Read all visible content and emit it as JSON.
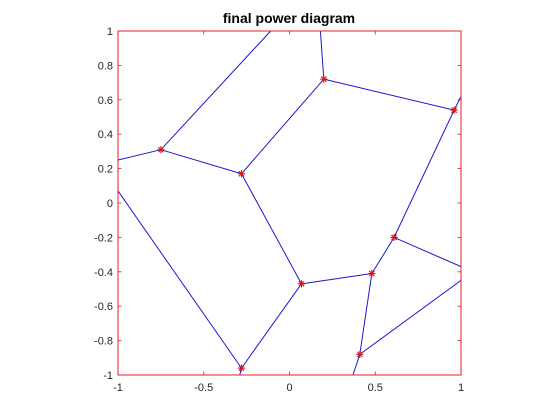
{
  "chart_data": {
    "type": "diagram",
    "title": "final power diagram",
    "xlabel": "",
    "ylabel": "",
    "xlim": [
      -1,
      1
    ],
    "ylim": [
      -1,
      1
    ],
    "xticks": [
      -1,
      -0.5,
      0,
      0.5,
      1
    ],
    "xtick_labels": [
      "-1",
      "-0.5",
      "0",
      "0.5",
      "1"
    ],
    "yticks": [
      1,
      0.8,
      0.6,
      0.4,
      0.2,
      0,
      -0.2,
      -0.4,
      -0.6,
      -0.8,
      -1
    ],
    "ytick_labels": [
      "1",
      "0.8",
      "0.6",
      "0.4",
      "0.2",
      "0",
      "-0.2",
      "-0.4",
      "-0.6",
      "-0.8",
      "-1"
    ],
    "grid": false,
    "frame_color": "#e0202a",
    "edge_color": "#1a1acc",
    "marker_color": "#dd1111",
    "marker_symbol": "asterisk",
    "vertices": [
      {
        "x": -0.75,
        "y": 0.31
      },
      {
        "x": -0.28,
        "y": 0.17
      },
      {
        "x": 0.2,
        "y": 0.72
      },
      {
        "x": 0.96,
        "y": 0.54
      },
      {
        "x": 0.61,
        "y": -0.2
      },
      {
        "x": 0.48,
        "y": -0.41
      },
      {
        "x": 0.07,
        "y": -0.47
      },
      {
        "x": -0.28,
        "y": -0.96
      },
      {
        "x": 0.41,
        "y": -0.88
      }
    ],
    "edges": [
      {
        "x1": -1.0,
        "y1": 0.25,
        "x2": -0.75,
        "y2": 0.31
      },
      {
        "x1": -0.75,
        "y1": 0.31,
        "x2": -0.28,
        "y2": 0.17
      },
      {
        "x1": -0.75,
        "y1": 0.31,
        "x2": -0.11,
        "y2": 1.0
      },
      {
        "x1": -0.28,
        "y1": 0.17,
        "x2": 0.2,
        "y2": 0.72
      },
      {
        "x1": 0.2,
        "y1": 0.72,
        "x2": 0.18,
        "y2": 1.0
      },
      {
        "x1": 0.2,
        "y1": 0.72,
        "x2": 0.96,
        "y2": 0.54
      },
      {
        "x1": 0.96,
        "y1": 0.54,
        "x2": 1.0,
        "y2": 0.62
      },
      {
        "x1": 0.96,
        "y1": 0.54,
        "x2": 0.61,
        "y2": -0.2
      },
      {
        "x1": 0.61,
        "y1": -0.2,
        "x2": 1.0,
        "y2": -0.37
      },
      {
        "x1": 0.61,
        "y1": -0.2,
        "x2": 0.48,
        "y2": -0.41
      },
      {
        "x1": 0.48,
        "y1": -0.41,
        "x2": 0.07,
        "y2": -0.47
      },
      {
        "x1": 0.48,
        "y1": -0.41,
        "x2": 0.41,
        "y2": -0.88
      },
      {
        "x1": 0.07,
        "y1": -0.47,
        "x2": -0.28,
        "y2": 0.17
      },
      {
        "x1": 0.07,
        "y1": -0.47,
        "x2": -0.28,
        "y2": -0.96
      },
      {
        "x1": -0.28,
        "y1": -0.96,
        "x2": -1.0,
        "y2": 0.07
      },
      {
        "x1": -0.28,
        "y1": -0.96,
        "x2": -0.29,
        "y2": -1.0
      },
      {
        "x1": 0.41,
        "y1": -0.88,
        "x2": 1.0,
        "y2": -0.45
      },
      {
        "x1": 0.41,
        "y1": -0.88,
        "x2": 0.37,
        "y2": -1.0
      }
    ]
  }
}
